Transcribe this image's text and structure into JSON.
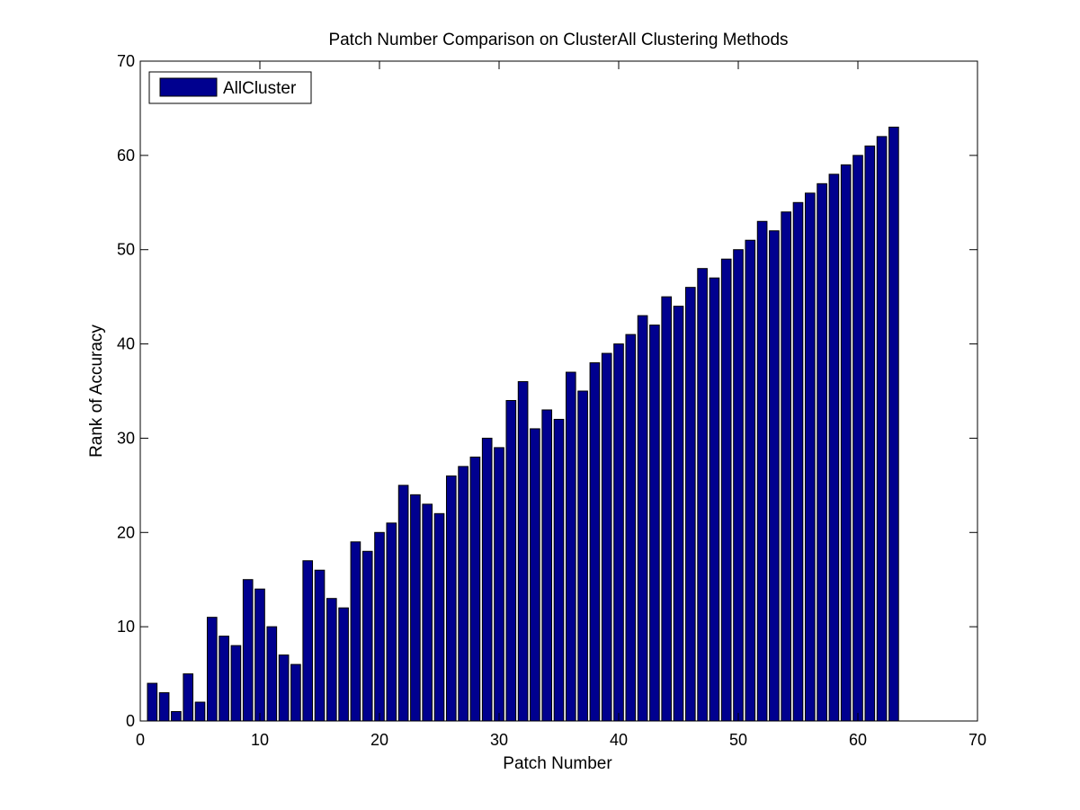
{
  "chart_data": {
    "type": "bar",
    "title": "Patch Number Comparison on ClusterAll Clustering Methods",
    "xlabel": "Patch Number",
    "ylabel": "Rank of Accuracy",
    "xlim": [
      0,
      70
    ],
    "ylim": [
      0,
      70
    ],
    "xticks": [
      "0",
      "10",
      "20",
      "30",
      "40",
      "50",
      "60",
      "70"
    ],
    "yticks": [
      "0",
      "10",
      "20",
      "30",
      "40",
      "50",
      "60",
      "70"
    ],
    "grid": false,
    "legend_position": "top-left",
    "series": [
      {
        "name": "AllCluster",
        "color": "#00008F",
        "x": [
          1,
          2,
          3,
          4,
          5,
          6,
          7,
          8,
          9,
          10,
          11,
          12,
          13,
          14,
          15,
          16,
          17,
          18,
          19,
          20,
          21,
          22,
          23,
          24,
          25,
          26,
          27,
          28,
          29,
          30,
          31,
          32,
          33,
          34,
          35,
          36,
          37,
          38,
          39,
          40,
          41,
          42,
          43,
          44,
          45,
          46,
          47,
          48,
          49,
          50,
          51,
          52,
          53,
          54,
          55,
          56,
          57,
          58,
          59,
          60,
          61,
          62,
          63
        ],
        "values": [
          4,
          3,
          1,
          5,
          2,
          11,
          9,
          8,
          15,
          14,
          10,
          7,
          6,
          17,
          16,
          13,
          12,
          19,
          18,
          20,
          21,
          25,
          24,
          23,
          22,
          26,
          27,
          28,
          30,
          29,
          34,
          36,
          31,
          33,
          32,
          37,
          35,
          38,
          39,
          40,
          41,
          43,
          42,
          45,
          44,
          46,
          48,
          47,
          49,
          50,
          51,
          53,
          52,
          54,
          55,
          56,
          57,
          58,
          59,
          60,
          61,
          62,
          63
        ]
      }
    ]
  }
}
